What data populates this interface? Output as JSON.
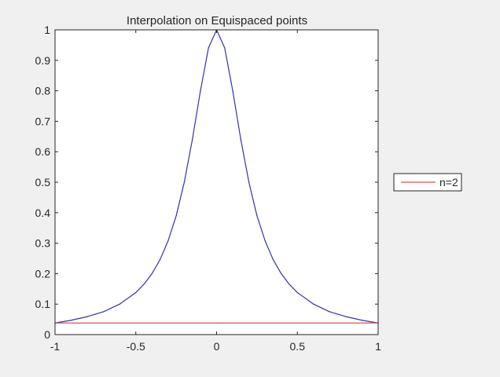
{
  "chart_data": {
    "type": "line",
    "title": "Interpolation on Equispaced points",
    "xlabel": "",
    "ylabel": "",
    "xlim": [
      -1,
      1
    ],
    "ylim": [
      0,
      1
    ],
    "xticks": [
      -1,
      -0.5,
      0,
      0.5,
      1
    ],
    "xtick_labels": [
      "-1",
      "-0.5",
      "0",
      "0.5",
      "1"
    ],
    "yticks": [
      0,
      0.1,
      0.2,
      0.3,
      0.4,
      0.5,
      0.6,
      0.7,
      0.8,
      0.9,
      1
    ],
    "ytick_labels": [
      "0",
      "0.1",
      "0.2",
      "0.3",
      "0.4",
      "0.5",
      "0.6",
      "0.7",
      "0.8",
      "0.9",
      "1"
    ],
    "grid": false,
    "legend_placement": "outside-right",
    "series": [
      {
        "color": "#3333aa",
        "x": [
          -1,
          -0.9,
          -0.8,
          -0.7,
          -0.6,
          -0.5,
          -0.45,
          -0.4,
          -0.35,
          -0.3,
          -0.25,
          -0.2,
          -0.15,
          -0.1,
          -0.05,
          0,
          0.05,
          0.1,
          0.15,
          0.2,
          0.25,
          0.3,
          0.35,
          0.4,
          0.45,
          0.5,
          0.6,
          0.7,
          0.8,
          0.9,
          1
        ],
        "y": [
          0.038,
          0.047,
          0.059,
          0.075,
          0.1,
          0.138,
          0.165,
          0.2,
          0.246,
          0.308,
          0.39,
          0.5,
          0.64,
          0.8,
          0.941,
          1,
          0.941,
          0.8,
          0.64,
          0.5,
          0.39,
          0.308,
          0.246,
          0.2,
          0.165,
          0.138,
          0.1,
          0.075,
          0.059,
          0.047,
          0.038
        ]
      },
      {
        "name": "n=2",
        "color": "#d9534f",
        "x": [
          -1,
          0,
          1
        ],
        "y": [
          0.038,
          0.038,
          0.038
        ]
      }
    ]
  }
}
